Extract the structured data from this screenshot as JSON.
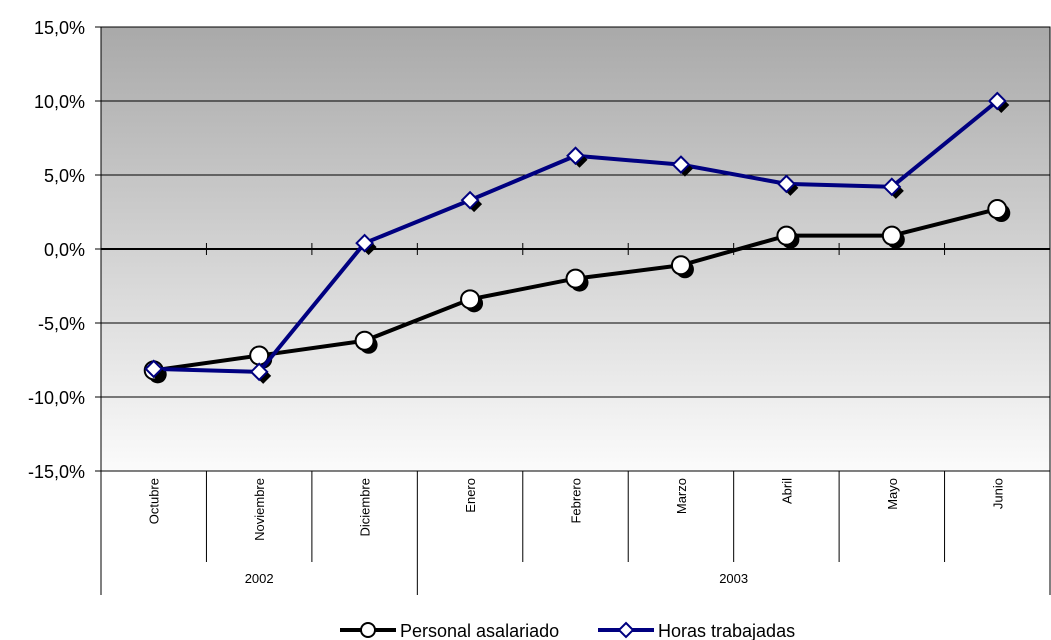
{
  "chart_data": {
    "type": "line",
    "categories": [
      "Octubre",
      "Noviembre",
      "Diciembre",
      "Enero",
      "Febrero",
      "Marzo",
      "Abril",
      "Mayo",
      "Junio"
    ],
    "groups": [
      {
        "label": "2002",
        "from": 0,
        "to": 2
      },
      {
        "label": "2003",
        "from": 3,
        "to": 8
      }
    ],
    "series": [
      {
        "name": "Personal asalariado",
        "marker": "circle",
        "color": "#000000",
        "values": [
          -8.2,
          -7.2,
          -6.2,
          -3.4,
          -2.0,
          -1.1,
          0.9,
          0.9,
          2.7
        ]
      },
      {
        "name": "Horas trabajadas",
        "marker": "diamond",
        "color": "#000080",
        "values": [
          -8.1,
          -8.3,
          0.4,
          3.3,
          6.3,
          5.7,
          4.4,
          4.2,
          10.0
        ]
      }
    ],
    "ylim": [
      -15,
      15
    ],
    "yticks": [
      15,
      10,
      5,
      0,
      -5,
      -10,
      -15
    ],
    "ytick_labels": [
      "15,0%",
      "10,0%",
      "5,0%",
      "0,0%",
      "-5,0%",
      "-10,0%",
      "-15,0%"
    ],
    "grid": true,
    "legend_position": "bottom-center",
    "title": "",
    "xlabel": "",
    "ylabel": ""
  }
}
